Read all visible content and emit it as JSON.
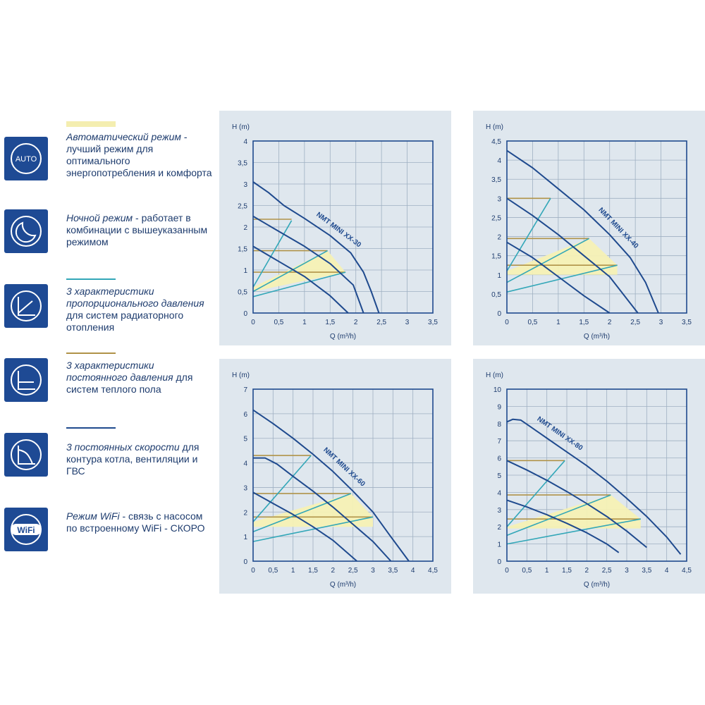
{
  "legend": [
    {
      "icon": "auto-icon",
      "icon_text": "AUTO",
      "swatch": "#f4eeb0",
      "italic": "Автоматический режим",
      "rest": " - лучший режим для оптимального энергопотребления и комфорта"
    },
    {
      "icon": "moon-icon",
      "icon_text": "",
      "swatch": "",
      "italic": "Ночной режим",
      "rest": " - работает в комбинации с вышеуказанным режимом"
    },
    {
      "icon": "proportional-pressure-icon",
      "icon_text": "",
      "swatch": "#33a7b8",
      "italic": "3 характеристики пропорционального давления",
      "rest": " для систем радиаторного отопления"
    },
    {
      "icon": "constant-pressure-icon",
      "icon_text": "",
      "swatch": "#b09348",
      "italic": "3 характеристики постоянного давления",
      "rest": " для систем теплого пола"
    },
    {
      "icon": "constant-speed-icon",
      "icon_text": "",
      "swatch": "#1f4a8e",
      "italic": "3 постоянных скорости",
      "rest": " для контура котла, вентиляции и ГВС"
    },
    {
      "icon": "wifi-icon",
      "icon_text": "WiFi",
      "swatch": "",
      "italic": "Режим WiFi",
      "rest": " - связь с насосом по встроенному WiFi - СКОРО"
    }
  ],
  "colors": {
    "speed": "#1f4a8e",
    "proportional": "#33a7b8",
    "constant": "#b09348",
    "auto": "#f6f1b4",
    "frame": "#1f4a8e",
    "grid": "#9fb0c2",
    "icon_bg": "#1e4a94"
  },
  "chart_data": [
    {
      "type": "line",
      "model": "NMT MINI XX-30",
      "xlabel": "Q (m³/h)",
      "ylabel": "H (m)",
      "xlim": [
        0,
        3.5
      ],
      "ylim": [
        0,
        4
      ],
      "xticks": [
        "0",
        "0,5",
        "1",
        "1,5",
        "2",
        "2,5",
        "3",
        "3,5"
      ],
      "yticks": [
        "0",
        "0,5",
        "1",
        "1,5",
        "2",
        "2,5",
        "3",
        "3,5",
        "4"
      ],
      "x_step": 0.5,
      "y_step": 0.5,
      "label_curve": 0,
      "speed_curves": [
        [
          [
            0,
            3.05
          ],
          [
            0.3,
            2.8
          ],
          [
            0.6,
            2.5
          ],
          [
            1.0,
            2.2
          ],
          [
            1.5,
            1.8
          ],
          [
            1.9,
            1.4
          ],
          [
            2.15,
            0.95
          ],
          [
            2.3,
            0.5
          ],
          [
            2.45,
            0
          ]
        ],
        [
          [
            0,
            2.25
          ],
          [
            0.5,
            1.9
          ],
          [
            1.0,
            1.55
          ],
          [
            1.5,
            1.15
          ],
          [
            1.95,
            0.65
          ],
          [
            2.15,
            0
          ]
        ],
        [
          [
            0,
            1.55
          ],
          [
            0.5,
            1.2
          ],
          [
            1.0,
            0.85
          ],
          [
            1.5,
            0.4
          ],
          [
            1.85,
            0
          ]
        ]
      ],
      "proportional_lines": [
        [
          [
            0,
            0.6
          ],
          [
            0.75,
            2.15
          ]
        ],
        [
          [
            0,
            0.5
          ],
          [
            1.45,
            1.45
          ]
        ],
        [
          [
            0,
            0.38
          ],
          [
            1.8,
            0.95
          ]
        ]
      ],
      "constant_lines": [
        [
          [
            0,
            2.18
          ],
          [
            0.75,
            2.18
          ]
        ],
        [
          [
            0,
            1.45
          ],
          [
            1.45,
            1.45
          ]
        ],
        [
          [
            0,
            0.95
          ],
          [
            1.8,
            0.95
          ]
        ]
      ],
      "auto_region": [
        [
          0,
          0.6
        ],
        [
          1.45,
          1.45
        ],
        [
          1.8,
          0.95
        ],
        [
          0,
          0.5
        ]
      ]
    },
    {
      "type": "line",
      "model": "NMT MINI XX-40",
      "xlabel": "Q (m³/h)",
      "ylabel": "H (m)",
      "xlim": [
        0,
        3.5
      ],
      "ylim": [
        0,
        4.5
      ],
      "xticks": [
        "0",
        "0,5",
        "1",
        "1,5",
        "2",
        "2,5",
        "3",
        "3,5"
      ],
      "yticks": [
        "0",
        "0,5",
        "1",
        "1,5",
        "2",
        "2,5",
        "3",
        "3,5",
        "4",
        "4,5"
      ],
      "x_step": 0.5,
      "y_step": 0.5,
      "label_curve": 0,
      "speed_curves": [
        [
          [
            0,
            4.25
          ],
          [
            0.5,
            3.8
          ],
          [
            1.0,
            3.25
          ],
          [
            1.5,
            2.7
          ],
          [
            2.0,
            2.05
          ],
          [
            2.4,
            1.45
          ],
          [
            2.7,
            0.8
          ],
          [
            2.95,
            0
          ]
        ],
        [
          [
            0,
            3.0
          ],
          [
            0.5,
            2.55
          ],
          [
            1.0,
            2.05
          ],
          [
            1.5,
            1.5
          ],
          [
            2.0,
            0.95
          ],
          [
            2.55,
            0
          ]
        ],
        [
          [
            0,
            1.85
          ],
          [
            0.5,
            1.45
          ],
          [
            1.0,
            0.95
          ],
          [
            1.5,
            0.45
          ],
          [
            2.0,
            0
          ]
        ]
      ],
      "proportional_lines": [
        [
          [
            0,
            1.1
          ],
          [
            0.85,
            3.0
          ]
        ],
        [
          [
            0,
            0.8
          ],
          [
            1.6,
            1.95
          ]
        ],
        [
          [
            0,
            0.55
          ],
          [
            2.15,
            1.25
          ]
        ]
      ],
      "constant_lines": [
        [
          [
            0,
            3.0
          ],
          [
            0.85,
            3.0
          ]
        ],
        [
          [
            0,
            1.95
          ],
          [
            1.6,
            1.95
          ]
        ],
        [
          [
            0,
            1.25
          ],
          [
            2.15,
            1.25
          ]
        ]
      ],
      "auto_region": [
        [
          0,
          1.1
        ],
        [
          1.6,
          1.95
        ],
        [
          2.15,
          1.25
        ],
        [
          2.15,
          1.0
        ],
        [
          0,
          1.0
        ]
      ]
    },
    {
      "type": "line",
      "model": "NMT MINI XX-60",
      "xlabel": "Q (m³/h)",
      "ylabel": "H (m)",
      "xlim": [
        0,
        4.5
      ],
      "ylim": [
        0,
        7
      ],
      "xticks": [
        "0",
        "0,5",
        "1",
        "1,5",
        "2",
        "2,5",
        "3",
        "3,5",
        "4",
        "4,5"
      ],
      "yticks": [
        "0",
        "1",
        "2",
        "3",
        "4",
        "5",
        "6",
        "7"
      ],
      "x_step": 0.5,
      "y_step": 1,
      "label_curve": 0,
      "speed_curves": [
        [
          [
            0,
            6.15
          ],
          [
            0.5,
            5.6
          ],
          [
            1.0,
            5.0
          ],
          [
            1.5,
            4.35
          ],
          [
            2.0,
            3.65
          ],
          [
            2.5,
            2.85
          ],
          [
            3.0,
            2.0
          ],
          [
            3.4,
            1.1
          ],
          [
            3.9,
            0
          ]
        ],
        [
          [
            0,
            4.2
          ],
          [
            0.3,
            4.2
          ],
          [
            0.6,
            3.95
          ],
          [
            1.0,
            3.45
          ],
          [
            1.5,
            2.85
          ],
          [
            2.0,
            2.2
          ],
          [
            2.5,
            1.5
          ],
          [
            3.0,
            0.8
          ],
          [
            3.45,
            0
          ]
        ],
        [
          [
            0,
            2.8
          ],
          [
            0.5,
            2.35
          ],
          [
            1.0,
            1.9
          ],
          [
            1.5,
            1.4
          ],
          [
            2.0,
            0.85
          ],
          [
            2.6,
            0
          ]
        ]
      ],
      "proportional_lines": [
        [
          [
            0,
            1.6
          ],
          [
            1.45,
            4.3
          ]
        ],
        [
          [
            0,
            1.2
          ],
          [
            2.45,
            2.75
          ]
        ],
        [
          [
            0,
            0.8
          ],
          [
            3.0,
            1.8
          ]
        ]
      ],
      "constant_lines": [
        [
          [
            0,
            4.3
          ],
          [
            1.45,
            4.3
          ]
        ],
        [
          [
            0,
            2.75
          ],
          [
            2.45,
            2.75
          ]
        ],
        [
          [
            0,
            1.8
          ],
          [
            3.0,
            1.8
          ]
        ]
      ],
      "auto_region": [
        [
          0,
          1.6
        ],
        [
          2.45,
          2.75
        ],
        [
          3.0,
          1.8
        ],
        [
          3.0,
          1.4
        ],
        [
          0,
          1.4
        ]
      ]
    },
    {
      "type": "line",
      "model": "NMT MINI XX-80",
      "xlabel": "Q (m³/h)",
      "ylabel": "H (m)",
      "xlim": [
        0,
        4.5
      ],
      "ylim": [
        0,
        10
      ],
      "xticks": [
        "0",
        "0,5",
        "1",
        "1,5",
        "2",
        "2,5",
        "3",
        "3,5",
        "4",
        "4,5"
      ],
      "yticks": [
        "0",
        "1",
        "2",
        "3",
        "4",
        "5",
        "6",
        "7",
        "8",
        "9",
        "10"
      ],
      "x_step": 0.5,
      "y_step": 1,
      "label_curve": 0,
      "speed_curves": [
        [
          [
            0,
            8.1
          ],
          [
            0.15,
            8.25
          ],
          [
            0.35,
            8.2
          ],
          [
            0.6,
            7.8
          ],
          [
            1.0,
            7.15
          ],
          [
            1.5,
            6.35
          ],
          [
            2.0,
            5.55
          ],
          [
            2.5,
            4.65
          ],
          [
            3.0,
            3.65
          ],
          [
            3.5,
            2.6
          ],
          [
            4.0,
            1.4
          ],
          [
            4.35,
            0.4
          ]
        ],
        [
          [
            0,
            5.85
          ],
          [
            0.5,
            5.3
          ],
          [
            1.0,
            4.7
          ],
          [
            1.5,
            4.05
          ],
          [
            2.0,
            3.35
          ],
          [
            2.5,
            2.6
          ],
          [
            3.0,
            1.75
          ],
          [
            3.5,
            0.8
          ]
        ],
        [
          [
            0,
            3.55
          ],
          [
            0.5,
            3.15
          ],
          [
            1.0,
            2.7
          ],
          [
            1.5,
            2.2
          ],
          [
            2.0,
            1.65
          ],
          [
            2.5,
            1.0
          ],
          [
            2.8,
            0.5
          ]
        ]
      ],
      "proportional_lines": [
        [
          [
            0,
            2.0
          ],
          [
            1.45,
            5.85
          ]
        ],
        [
          [
            0,
            1.5
          ],
          [
            2.6,
            3.85
          ]
        ],
        [
          [
            0,
            1.0
          ],
          [
            3.35,
            2.45
          ]
        ]
      ],
      "constant_lines": [
        [
          [
            0,
            5.85
          ],
          [
            1.45,
            5.85
          ]
        ],
        [
          [
            0,
            3.85
          ],
          [
            2.6,
            3.85
          ]
        ],
        [
          [
            0,
            2.45
          ],
          [
            3.35,
            2.45
          ]
        ]
      ],
      "auto_region": [
        [
          0,
          2.0
        ],
        [
          2.6,
          3.85
        ],
        [
          3.35,
          2.45
        ],
        [
          3.35,
          1.9
        ],
        [
          0,
          1.9
        ]
      ]
    }
  ]
}
